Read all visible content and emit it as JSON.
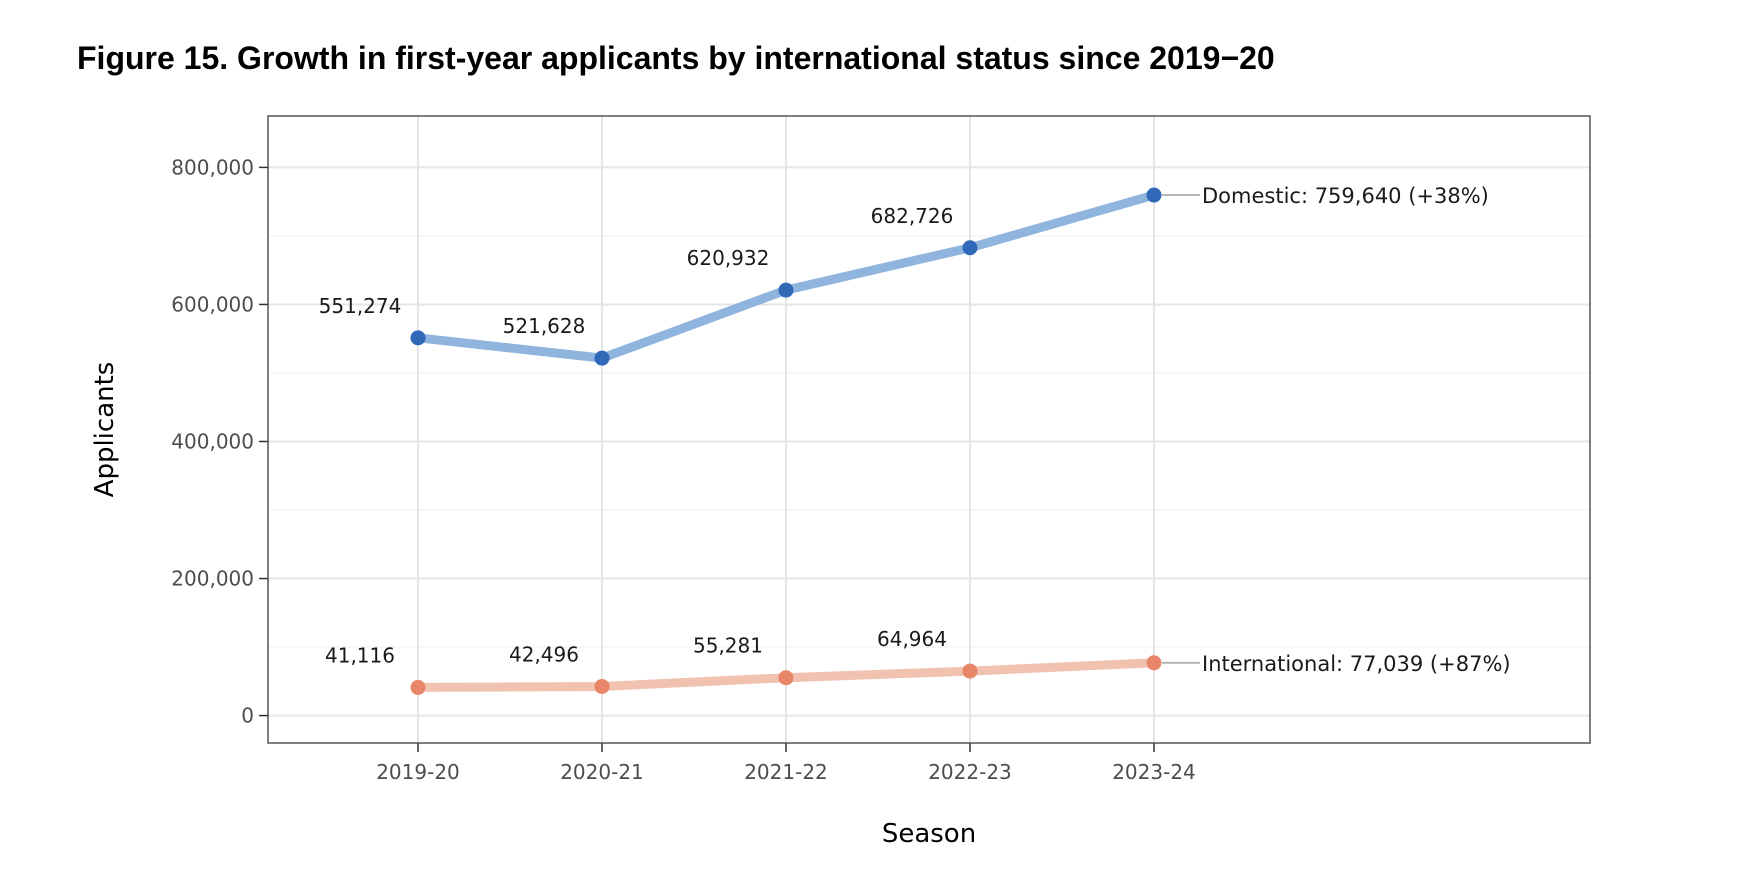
{
  "figure_title": "Figure 15. Growth in first-year applicants by international status since 2019−20",
  "chart_data": {
    "type": "line",
    "title": "Figure 15. Growth in first-year applicants by international status since 2019−20",
    "xlabel": "Season",
    "ylabel": "Applicants",
    "categories": [
      "2019-20",
      "2020-21",
      "2021-22",
      "2022-23",
      "2023-24"
    ],
    "ylim": [
      -40000,
      875000
    ],
    "yticks": [
      0,
      200000,
      400000,
      600000,
      800000
    ],
    "ytick_labels": [
      "0",
      "200,000",
      "400,000",
      "600,000",
      "800,000"
    ],
    "grid": true,
    "legend": "direct end labels",
    "series": [
      {
        "name": "Domestic",
        "values": [
          551274,
          521628,
          620932,
          682726,
          759640
        ],
        "value_labels": [
          "551,274",
          "521,628",
          "620,932",
          "682,726",
          "759,640"
        ],
        "end_label": "Domestic: 759,640 (+38%)",
        "line_color": "#8fb4de",
        "point_color": "#2f69b8"
      },
      {
        "name": "International",
        "values": [
          41116,
          42496,
          55281,
          64964,
          77039
        ],
        "value_labels": [
          "41,116",
          "42,496",
          "55,281",
          "64,964",
          "77,039"
        ],
        "end_label": "International: 77,039 (+87%)",
        "line_color": "#f2c2b0",
        "point_color": "#e8866a"
      }
    ]
  }
}
